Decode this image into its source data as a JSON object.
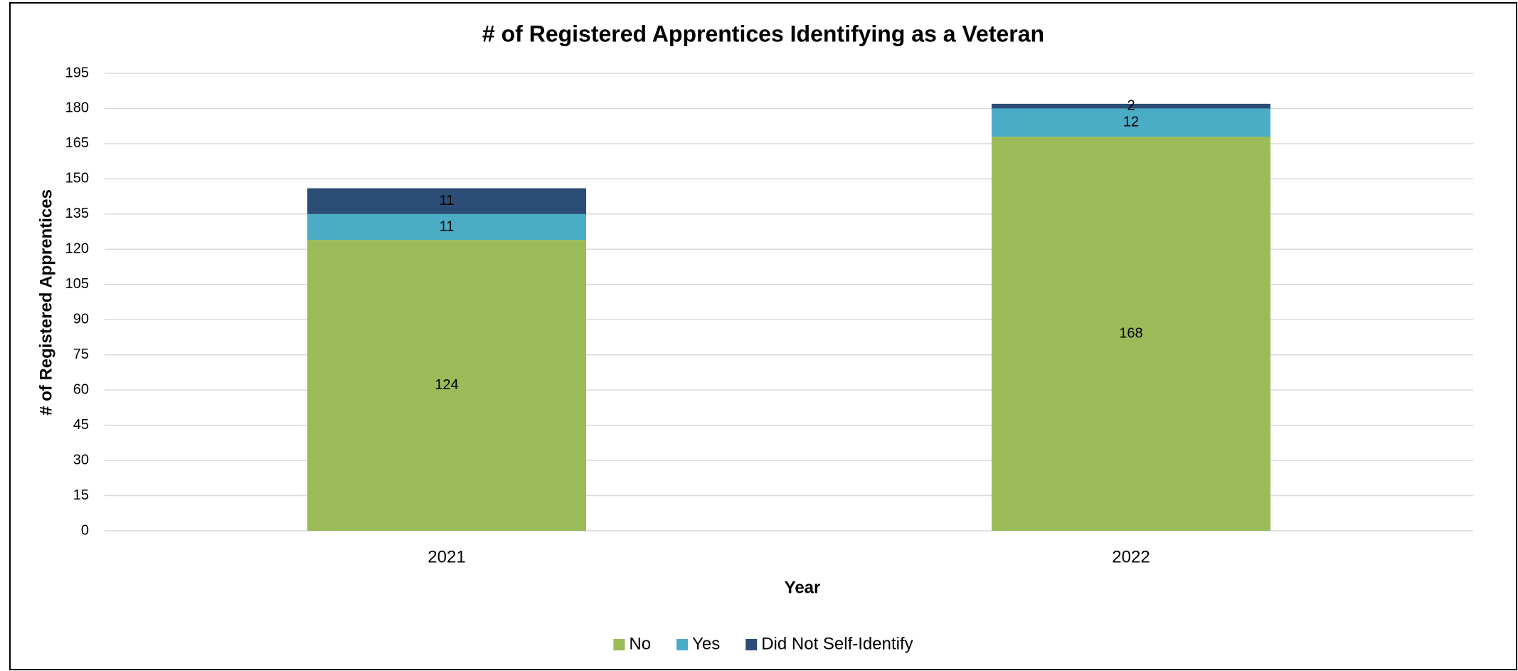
{
  "chart_data": {
    "type": "stacked-bar",
    "title": "# of Registered Apprentices Identifying as a Veteran",
    "x_label": "Year",
    "y_label": "# of Registered Apprentices",
    "categories": [
      "2021",
      "2022"
    ],
    "series": [
      {
        "name": "No",
        "color": "#9bbb59",
        "values": [
          124,
          168
        ]
      },
      {
        "name": "Yes",
        "color": "#4bacc6",
        "values": [
          11,
          12
        ]
      },
      {
        "name": "Did Not Self-Identify",
        "color": "#2c4d75",
        "values": [
          11,
          2
        ]
      }
    ],
    "ylim": [
      0,
      195
    ],
    "yticks": [
      0,
      15,
      30,
      45,
      60,
      75,
      90,
      105,
      120,
      135,
      150,
      165,
      180,
      195
    ],
    "grid": true,
    "legend": "bottom"
  }
}
